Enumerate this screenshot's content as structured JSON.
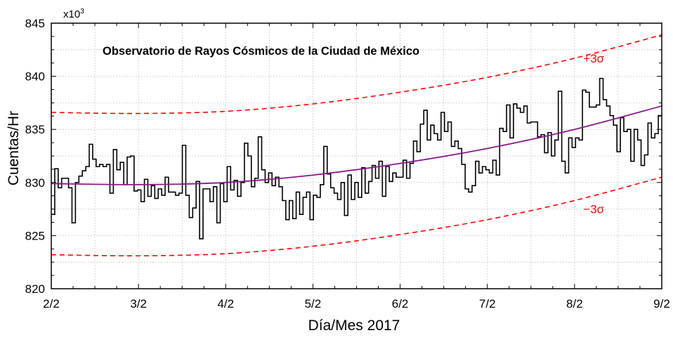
{
  "chart_data": {
    "type": "line",
    "title": "Observatorio de Rayos Cósmicos de la Ciudad de México",
    "xlabel": "Día/Mes 2017",
    "ylabel": "Cuentas/Hr",
    "y_multiplier": "x10",
    "y_multiplier_exp": "3",
    "xlim": [
      0,
      7
    ],
    "ylim": [
      820,
      845
    ],
    "x_tick_values": [
      0,
      1,
      2,
      3,
      4,
      5,
      6,
      7
    ],
    "x_tick_labels": [
      "2/2",
      "3/2",
      "4/2",
      "5/2",
      "6/2",
      "7/2",
      "8/2",
      "9/2"
    ],
    "y_tick_values": [
      820,
      825,
      830,
      835,
      840,
      845
    ],
    "y_tick_labels": [
      "820",
      "825",
      "830",
      "835",
      "840",
      "845"
    ],
    "grid": true,
    "series": [
      {
        "style": "step",
        "color": "#000000",
        "values": [
          827.0,
          831.3,
          829.5,
          830.4,
          830.4,
          829.5,
          826.2,
          830.0,
          830.6,
          831.1,
          831.5,
          833.6,
          832.2,
          831.5,
          831.7,
          831.5,
          831.7,
          829.0,
          833.1,
          831.2,
          831.9,
          829.8,
          832.4,
          832.5,
          829.2,
          829.3,
          828.2,
          830.3,
          828.7,
          829.7,
          828.5,
          829.4,
          828.8,
          830.5,
          829.1,
          829.1,
          828.8,
          829.0,
          833.5,
          828.8,
          826.7,
          827.6,
          830.1,
          824.7,
          829.4,
          829.4,
          828.2,
          829.6,
          826.2,
          829.9,
          828.2,
          831.5,
          829.3,
          830.2,
          828.7,
          830.0,
          833.7,
          832.5,
          829.6,
          830.4,
          834.3,
          831.2,
          830.0,
          830.9,
          829.7,
          830.5,
          829.6,
          828.3,
          826.5,
          828.3,
          826.6,
          829.1,
          827.0,
          828.6,
          829.1,
          826.5,
          828.8,
          828.6,
          829.8,
          833.4,
          830.8,
          829.5,
          829.0,
          828.4,
          830.0,
          826.9,
          830.7,
          828.4,
          830.0,
          828.6,
          831.4,
          829.0,
          830.1,
          831.6,
          830.4,
          832.0,
          828.7,
          831.5,
          830.1,
          830.9,
          830.5,
          830.5,
          832.1,
          830.4,
          831.8,
          833.9,
          832.9,
          835.5,
          836.8,
          834.0,
          835.4,
          834.6,
          834.0,
          836.6,
          834.8,
          835.7,
          833.4,
          833.9,
          833.2,
          831.7,
          829.4,
          829.1,
          829.7,
          832.0,
          830.9,
          831.5,
          831.2,
          830.9,
          832.1,
          830.7,
          835.1,
          834.8,
          837.3,
          834.2,
          837.4,
          837.0,
          836.6,
          837.2,
          835.6,
          835.7,
          835.7,
          834.3,
          834.5,
          832.8,
          834.7,
          832.5,
          834.0,
          838.6,
          832.0,
          830.9,
          834.2,
          833.3,
          834.2,
          834.0,
          838.7,
          838.5,
          837.1,
          837.1,
          837.3,
          839.8,
          837.8,
          837.2,
          836.3,
          835.4,
          832.9,
          836.1,
          834.8,
          835.0,
          832.0,
          835.0,
          834.0,
          831.6,
          832.6,
          835.6,
          834.2,
          834.6,
          836.3
        ]
      },
      {
        "style": "smooth",
        "color": "#8b1a8b",
        "x": [
          0,
          1,
          2,
          3,
          4,
          5,
          6,
          7
        ],
        "values": [
          829.9,
          829.8,
          830.0,
          830.7,
          831.8,
          833.2,
          835.0,
          837.2
        ]
      },
      {
        "name": "+3σ",
        "style": "dashed",
        "color": "#ff0000",
        "x": [
          0,
          1,
          2,
          3,
          4,
          5,
          6,
          7
        ],
        "values": [
          836.6,
          836.5,
          836.7,
          837.4,
          838.5,
          839.9,
          841.7,
          843.9
        ]
      },
      {
        "name": "−3σ",
        "style": "dashed",
        "color": "#ff0000",
        "x": [
          0,
          1,
          2,
          3,
          4,
          5,
          6,
          7
        ],
        "values": [
          823.2,
          823.1,
          823.3,
          824.0,
          825.1,
          826.5,
          828.3,
          830.5
        ]
      }
    ],
    "annotations": [
      {
        "text": "+3σ",
        "x": 6.1,
        "y": 841.3,
        "color": "#ff0000"
      },
      {
        "text": "−3σ",
        "x": 6.1,
        "y": 827.1,
        "color": "#ff0000"
      }
    ]
  }
}
